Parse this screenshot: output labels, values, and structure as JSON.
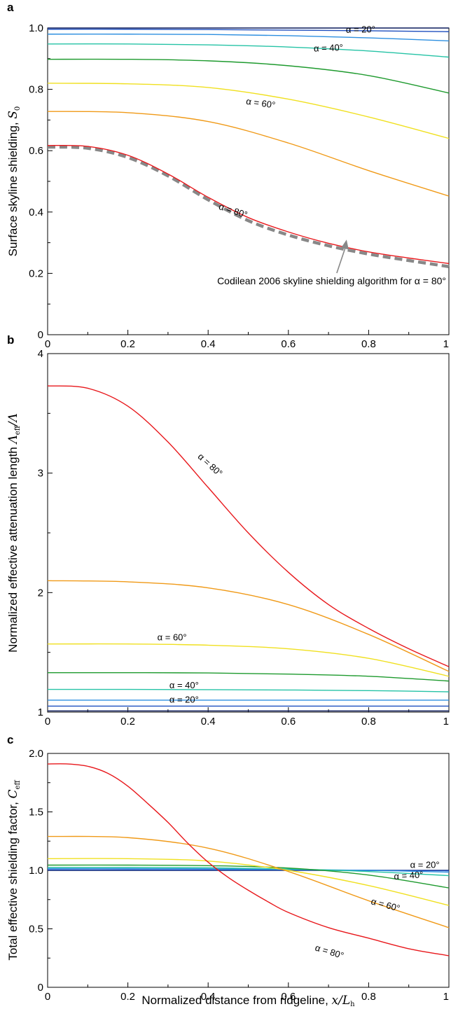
{
  "chart_data": [
    {
      "panel": "a",
      "type": "line",
      "xlim": [
        0,
        1
      ],
      "ylim": [
        0,
        1.0
      ],
      "xticks": [
        "0",
        "0.2",
        "0.4",
        "0.6",
        "0.8",
        "1"
      ],
      "yticks": [
        "0",
        "0.2",
        "0.4",
        "0.6",
        "0.8",
        "1.0"
      ],
      "ylabel_parts": [
        "Surface skyline shielding, ",
        "S",
        "0"
      ],
      "series": [
        {
          "color": "#0a1a5c",
          "x": [
            0,
            0.2,
            0.4,
            0.6,
            0.8,
            1.0
          ],
          "y": [
            1.0,
            1.0,
            1.0,
            1.0,
            1.0,
            1.0
          ]
        },
        {
          "color": "#1f4fbf",
          "x": [
            0,
            0.2,
            0.4,
            0.6,
            0.8,
            1.0
          ],
          "y": [
            0.996,
            0.996,
            0.995,
            0.993,
            0.991,
            0.988
          ]
        },
        {
          "color": "#2d8fe0",
          "x": [
            0,
            0.2,
            0.4,
            0.6,
            0.8,
            1.0
          ],
          "y": [
            0.98,
            0.98,
            0.979,
            0.975,
            0.968,
            0.958
          ]
        },
        {
          "color": "#26c3a6",
          "x": [
            0,
            0.2,
            0.4,
            0.6,
            0.8,
            1.0
          ],
          "y": [
            0.948,
            0.948,
            0.945,
            0.938,
            0.925,
            0.905
          ]
        },
        {
          "color": "#1e9a2e",
          "x": [
            0,
            0.2,
            0.4,
            0.6,
            0.8,
            1.0
          ],
          "y": [
            0.898,
            0.898,
            0.893,
            0.877,
            0.845,
            0.788
          ]
        },
        {
          "color": "#f0e020",
          "x": [
            0,
            0.2,
            0.4,
            0.6,
            0.8,
            1.0
          ],
          "y": [
            0.82,
            0.818,
            0.806,
            0.768,
            0.71,
            0.64
          ]
        },
        {
          "color": "#f09a18",
          "x": [
            0,
            0.2,
            0.4,
            0.6,
            0.8,
            1.0
          ],
          "y": [
            0.728,
            0.724,
            0.695,
            0.625,
            0.535,
            0.452
          ]
        },
        {
          "color": "#e8181c",
          "x": [
            0,
            0.1,
            0.2,
            0.3,
            0.4,
            0.5,
            0.6,
            0.7,
            0.8,
            0.9,
            1.0
          ],
          "y": [
            0.617,
            0.614,
            0.585,
            0.524,
            0.448,
            0.382,
            0.335,
            0.298,
            0.27,
            0.25,
            0.232
          ]
        },
        {
          "color": "#888888",
          "dashed": true,
          "x": [
            0,
            0.1,
            0.2,
            0.3,
            0.4,
            0.5,
            0.6,
            0.7,
            0.8,
            0.9,
            1.0
          ],
          "y": [
            0.612,
            0.608,
            0.578,
            0.518,
            0.44,
            0.372,
            0.325,
            0.29,
            0.263,
            0.242,
            0.222
          ]
        }
      ],
      "labels": [
        {
          "text": "α = 20°",
          "x": 0.78,
          "y": 0.985,
          "angle": -1
        },
        {
          "text": "α = 40°",
          "x": 0.7,
          "y": 0.925,
          "angle": -2
        },
        {
          "text": "α = 60°",
          "x": 0.53,
          "y": 0.745,
          "angle": 8
        },
        {
          "text": "α = 80°",
          "x": 0.46,
          "y": 0.395,
          "angle": 18
        }
      ],
      "annotation": {
        "text": "Codilean 2006 skyline shielding algorithm for α = 80°",
        "arrow_tip": [
          0.745,
          0.31
        ]
      }
    },
    {
      "panel": "b",
      "type": "line",
      "xlim": [
        0,
        1
      ],
      "ylim": [
        1,
        4
      ],
      "xticks": [
        "0",
        "0.2",
        "0.4",
        "0.6",
        "0.8",
        "1"
      ],
      "yticks": [
        "1",
        "2",
        "3",
        "4"
      ],
      "ylabel_parts": [
        "Normalized effective attenuation length ",
        "Λ",
        "eff",
        "/Λ"
      ],
      "series": [
        {
          "color": "#0a1a5c",
          "x": [
            0,
            0.2,
            0.4,
            0.6,
            0.8,
            1.0
          ],
          "y": [
            1.01,
            1.01,
            1.01,
            1.01,
            1.01,
            1.01
          ]
        },
        {
          "color": "#1f4fbf",
          "x": [
            0,
            0.2,
            0.4,
            0.6,
            0.8,
            1.0
          ],
          "y": [
            1.05,
            1.05,
            1.05,
            1.05,
            1.05,
            1.05
          ]
        },
        {
          "color": "#2d8fe0",
          "x": [
            0,
            0.2,
            0.4,
            0.6,
            0.8,
            1.0
          ],
          "y": [
            1.1,
            1.1,
            1.1,
            1.1,
            1.1,
            1.1
          ]
        },
        {
          "color": "#26c3a6",
          "x": [
            0,
            0.2,
            0.4,
            0.6,
            0.8,
            1.0
          ],
          "y": [
            1.19,
            1.19,
            1.188,
            1.185,
            1.18,
            1.17
          ]
        },
        {
          "color": "#1e9a2e",
          "x": [
            0,
            0.2,
            0.4,
            0.6,
            0.8,
            1.0
          ],
          "y": [
            1.33,
            1.33,
            1.328,
            1.318,
            1.3,
            1.26
          ]
        },
        {
          "color": "#f0e020",
          "x": [
            0,
            0.2,
            0.4,
            0.6,
            0.8,
            1.0
          ],
          "y": [
            1.57,
            1.57,
            1.56,
            1.53,
            1.45,
            1.3
          ]
        },
        {
          "color": "#f09a18",
          "x": [
            0,
            0.2,
            0.4,
            0.6,
            0.8,
            1.0
          ],
          "y": [
            2.1,
            2.09,
            2.04,
            1.9,
            1.65,
            1.34
          ]
        },
        {
          "color": "#e8181c",
          "x": [
            0,
            0.1,
            0.2,
            0.3,
            0.4,
            0.5,
            0.6,
            0.7,
            0.8,
            0.9,
            1.0
          ],
          "y": [
            3.73,
            3.71,
            3.56,
            3.26,
            2.88,
            2.5,
            2.17,
            1.9,
            1.7,
            1.53,
            1.38
          ]
        }
      ],
      "labels": [
        {
          "text": "α = 80°",
          "x": 0.4,
          "y": 3.05,
          "angle": 42
        },
        {
          "text": "α = 60°",
          "x": 0.31,
          "y": 1.6,
          "angle": 0
        },
        {
          "text": "α = 40°",
          "x": 0.34,
          "y": 1.2,
          "angle": 0
        },
        {
          "text": "α = 20°",
          "x": 0.34,
          "y": 1.08,
          "angle": 0
        }
      ]
    },
    {
      "panel": "c",
      "type": "line",
      "xlim": [
        0,
        1
      ],
      "ylim": [
        0,
        2.0
      ],
      "xticks": [
        "0",
        "0.2",
        "0.4",
        "0.6",
        "0.8",
        "1"
      ],
      "yticks": [
        "0",
        "0.5",
        "1.0",
        "1.5",
        "2.0"
      ],
      "ylabel_parts": [
        "Total effective shielding factor, ",
        "C",
        "eff"
      ],
      "xlabel_parts": [
        "Normalized distance from ridgeline, ",
        "x/L",
        "h"
      ],
      "series": [
        {
          "color": "#0a1a5c",
          "x": [
            0,
            0.2,
            0.4,
            0.6,
            0.8,
            1.0
          ],
          "y": [
            1.0,
            1.0,
            1.0,
            1.0,
            1.0,
            1.0
          ]
        },
        {
          "color": "#1f4fbf",
          "x": [
            0,
            0.2,
            0.4,
            0.6,
            0.8,
            1.0
          ],
          "y": [
            1.005,
            1.005,
            1.004,
            1.003,
            1.0,
            0.997
          ]
        },
        {
          "color": "#2d8fe0",
          "x": [
            0,
            0.2,
            0.4,
            0.6,
            0.8,
            1.0
          ],
          "y": [
            1.015,
            1.015,
            1.013,
            1.008,
            1.0,
            0.985
          ]
        },
        {
          "color": "#26c3a6",
          "x": [
            0,
            0.2,
            0.4,
            0.6,
            0.8,
            1.0
          ],
          "y": [
            1.025,
            1.025,
            1.022,
            1.012,
            0.99,
            0.955
          ]
        },
        {
          "color": "#1e9a2e",
          "x": [
            0,
            0.2,
            0.4,
            0.6,
            0.8,
            1.0
          ],
          "y": [
            1.045,
            1.045,
            1.04,
            1.02,
            0.96,
            0.85
          ]
        },
        {
          "color": "#f0e020",
          "x": [
            0,
            0.2,
            0.4,
            0.6,
            0.8,
            1.0
          ],
          "y": [
            1.1,
            1.1,
            1.08,
            1.0,
            0.87,
            0.7
          ]
        },
        {
          "color": "#f09a18",
          "x": [
            0,
            0.2,
            0.4,
            0.6,
            0.8,
            1.0
          ],
          "y": [
            1.29,
            1.28,
            1.19,
            0.99,
            0.74,
            0.51
          ]
        },
        {
          "color": "#e8181c",
          "x": [
            0,
            0.05,
            0.1,
            0.15,
            0.2,
            0.25,
            0.3,
            0.35,
            0.4,
            0.45,
            0.5,
            0.55,
            0.6,
            0.7,
            0.8,
            0.9,
            1.0
          ],
          "y": [
            1.91,
            1.91,
            1.89,
            1.83,
            1.72,
            1.57,
            1.41,
            1.23,
            1.07,
            0.94,
            0.83,
            0.73,
            0.64,
            0.51,
            0.42,
            0.33,
            0.27
          ]
        }
      ],
      "labels": [
        {
          "text": "α = 20°",
          "x": 0.94,
          "y": 1.02,
          "angle": 0
        },
        {
          "text": "α = 40°",
          "x": 0.9,
          "y": 0.93,
          "angle": -4
        },
        {
          "text": "α = 60°",
          "x": 0.84,
          "y": 0.68,
          "angle": 15
        },
        {
          "text": "α = 80°",
          "x": 0.7,
          "y": 0.28,
          "angle": 17
        }
      ]
    }
  ]
}
